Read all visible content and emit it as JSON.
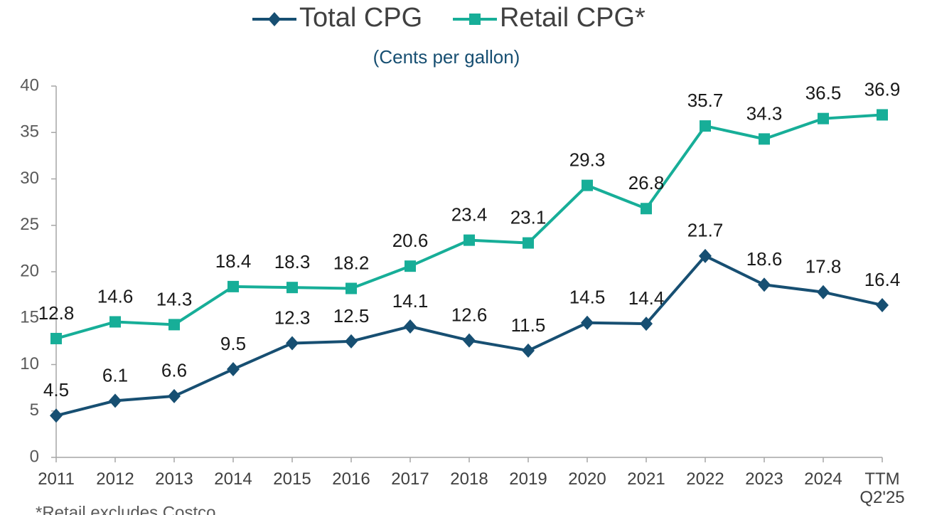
{
  "chart_data": {
    "type": "line",
    "subtitle": "(Cents per gallon)",
    "categories": [
      "2011",
      "2012",
      "2013",
      "2014",
      "2015",
      "2016",
      "2017",
      "2018",
      "2019",
      "2020",
      "2021",
      "2022",
      "2023",
      "2024",
      "TTM Q2'25"
    ],
    "series": [
      {
        "name": "Total CPG",
        "color": "#174f72",
        "marker": "diamond",
        "values": [
          4.5,
          6.1,
          6.6,
          9.5,
          12.3,
          12.5,
          14.1,
          12.6,
          11.5,
          14.5,
          14.4,
          21.7,
          18.6,
          17.8,
          16.4
        ]
      },
      {
        "name": "Retail CPG*",
        "color": "#17ae98",
        "marker": "square",
        "values": [
          12.8,
          14.6,
          14.3,
          18.4,
          18.3,
          18.2,
          20.6,
          23.4,
          23.1,
          29.3,
          26.8,
          35.7,
          34.3,
          36.5,
          36.9
        ]
      }
    ],
    "ylim": [
      0,
      40
    ],
    "yticks": [
      0,
      5,
      10,
      15,
      20,
      25,
      30,
      35,
      40
    ],
    "legend": "top",
    "footnote": "*Retail excludes Costco"
  }
}
